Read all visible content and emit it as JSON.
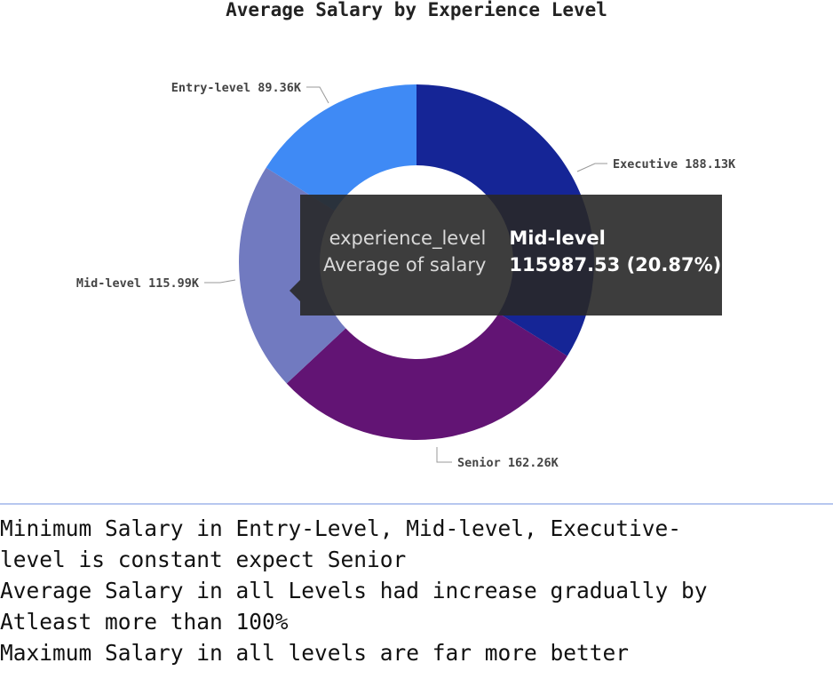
{
  "chart_data": {
    "type": "pie",
    "variant": "donut",
    "title": "Average Salary by Experience Level",
    "slices": [
      {
        "label": "Executive",
        "value": 188129.9,
        "value_label": "188.13K",
        "color": "#152596"
      },
      {
        "label": "Senior",
        "value": 162262.5,
        "value_label": "162.26K",
        "color": "#621474"
      },
      {
        "label": "Mid-level",
        "value": 115987.53,
        "value_label": "115.99K",
        "color": "#717ac0"
      },
      {
        "label": "Entry-level",
        "value": 89364.8,
        "value_label": "89.36K",
        "color": "#3f8af5"
      }
    ],
    "tooltip": {
      "rows": [
        {
          "key": "experience_level",
          "value": "Mid-level"
        },
        {
          "key": "Average of salary",
          "value": "115987.53 (20.87%)"
        }
      ]
    }
  },
  "notes": {
    "lines": [
      "Minimum Salary in Entry-Level, Mid-level, Executive-",
      "level is constant expect Senior",
      "Average Salary in all Levels had increase gradually by",
      "Atleast more than 100%",
      "Maximum Salary in all levels are far more better"
    ]
  }
}
